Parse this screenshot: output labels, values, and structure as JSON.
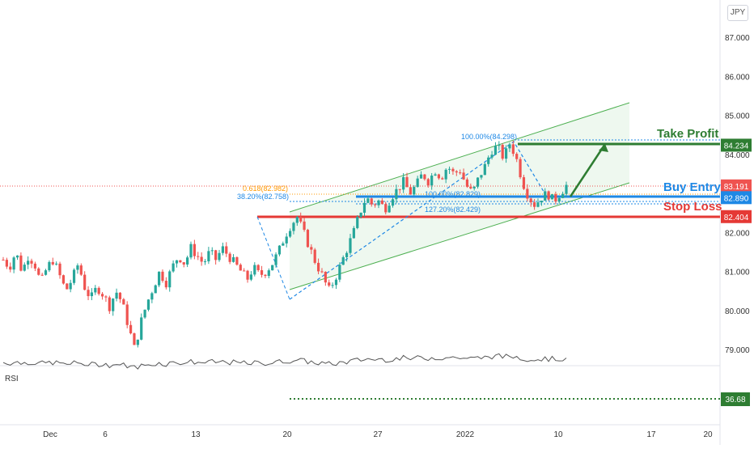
{
  "currency": "JPY",
  "chart_data": {
    "type": "candlestick",
    "instrument_currency": "JPY",
    "y_axis_ticks": [
      "87.000",
      "86.000",
      "85.000",
      "84.000",
      "83.000",
      "82.000",
      "81.000",
      "80.000",
      "79.000"
    ],
    "y_range": [
      78.6,
      87.6
    ],
    "x_axis_ticks": [
      "Dec",
      "6",
      "13",
      "20",
      "27",
      "2022",
      "10",
      "17",
      "20"
    ],
    "price_badges": [
      {
        "value": "84.234",
        "color": "#2e7d32",
        "price": 84.234
      },
      {
        "value": "83.191",
        "color": "#ef5350",
        "price": 83.191
      },
      {
        "value": "82.890",
        "color": "#1e88e5",
        "price": 82.89
      },
      {
        "value": "82.404",
        "color": "#e53935",
        "price": 82.404
      }
    ],
    "annotations": {
      "take_profit": "Take Profit",
      "buy_entry": "Buy Entry",
      "stop_loss": "Stop Loss",
      "fib_top": "100.00%(84.298)",
      "fib_618": "0.618(82.982)",
      "fib_382": "38.20%(82.758)",
      "fib_100": "100.00%(82.829)",
      "fib_127": "127.20%(82.429)"
    },
    "rsi": {
      "label": "RSI",
      "level_label": "36.68",
      "level": 36.68
    },
    "price_path": [
      81.3,
      81.1,
      81.5,
      81.0,
      81.4,
      81.2,
      80.7,
      81.1,
      81.3,
      80.9,
      80.5,
      80.8,
      81.2,
      80.6,
      80.3,
      80.6,
      80.4,
      80.1,
      80.5,
      80.2,
      79.6,
      79.0,
      79.7,
      80.2,
      80.6,
      81.0,
      80.7,
      81.1,
      81.4,
      81.2,
      81.6,
      81.4,
      81.2,
      81.5,
      81.3,
      81.6,
      81.4,
      81.2,
      81.0,
      80.8,
      81.1,
      80.9,
      81.0,
      81.2,
      81.5,
      81.9,
      82.2,
      82.4,
      82.0,
      81.6,
      81.2,
      80.9,
      80.5,
      80.8,
      81.2,
      81.6,
      82.0,
      82.5,
      82.9,
      82.7,
      82.8,
      82.6,
      82.9,
      83.1,
      83.3,
      83.0,
      83.2,
      83.5,
      83.3,
      83.6,
      83.4,
      83.7,
      83.5,
      83.6,
      83.2,
      83.0,
      83.4,
      83.7,
      84.1,
      84.2,
      83.9,
      84.3,
      83.9,
      83.3,
      82.9,
      82.7,
      82.9,
      83.0,
      82.8,
      83.0,
      83.2
    ]
  }
}
